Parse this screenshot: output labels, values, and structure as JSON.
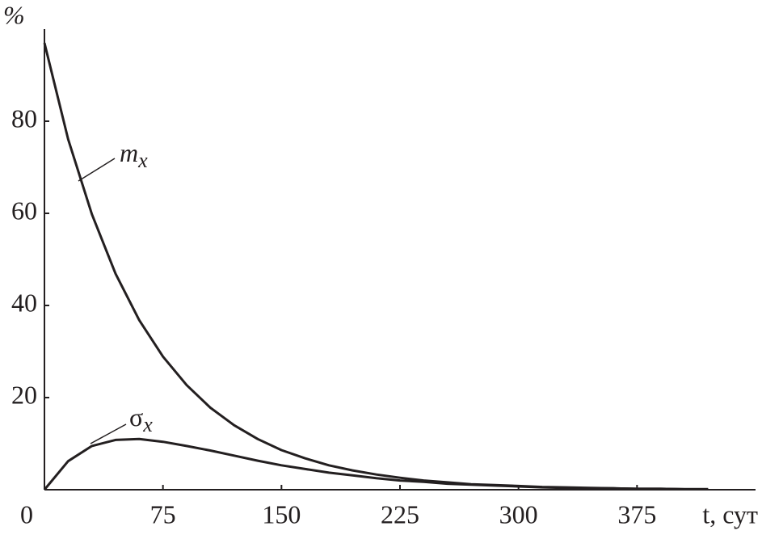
{
  "chart_data": {
    "type": "line",
    "x_label": "t, сут",
    "y_label": "%",
    "x": [
      0,
      15,
      30,
      45,
      60,
      75,
      90,
      105,
      120,
      135,
      150,
      165,
      180,
      195,
      210,
      225,
      240,
      255,
      270,
      285,
      300,
      315,
      330,
      345,
      360,
      375,
      390,
      405,
      420
    ],
    "series": [
      {
        "name": "mx",
        "color": "#231f20",
        "values": [
          97,
          76.1,
          59.8,
          46.9,
          36.8,
          28.9,
          22.7,
          17.8,
          14.0,
          11.0,
          8.6,
          6.8,
          5.3,
          4.2,
          3.3,
          2.6,
          2.0,
          1.6,
          1.2,
          1.0,
          0.8,
          0.6,
          0.5,
          0.4,
          0.3,
          0.2,
          0.2,
          0.1,
          0.1
        ]
      },
      {
        "name": "σx",
        "color": "#231f20",
        "values": [
          0,
          6.2,
          9.5,
          10.8,
          11.0,
          10.4,
          9.5,
          8.5,
          7.4,
          6.3,
          5.3,
          4.5,
          3.7,
          3.1,
          2.5,
          2.0,
          1.7,
          1.3,
          1.1,
          0.9,
          0.7,
          0.5,
          0.4,
          0.3,
          0.3,
          0.2,
          0.2,
          0.1,
          0.1
        ]
      }
    ],
    "annotations": [
      {
        "text": "m",
        "subscript": "x"
      },
      {
        "text": "σ",
        "subscript": "x"
      }
    ],
    "xlim": [
      0,
      450
    ],
    "xticks": [
      0,
      75,
      150,
      225,
      300,
      375
    ],
    "ylim": [
      0,
      100
    ],
    "yticks": [
      20,
      40,
      60,
      80
    ],
    "grid": false
  }
}
